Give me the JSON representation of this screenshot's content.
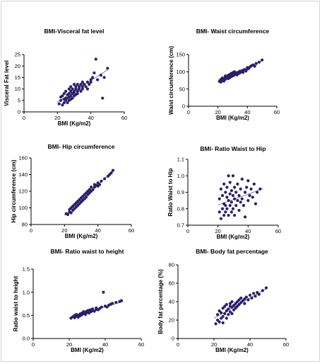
{
  "chart_data": [
    {
      "type": "scatter",
      "title": "BMI-Visceral fat level",
      "xlabel": "BMI (Kg/m2)",
      "ylabel": "Visceral Fat level",
      "xlim": [
        0,
        60
      ],
      "ylim": [
        0,
        25
      ],
      "xticks": [
        0,
        20,
        40,
        60
      ],
      "yticks": [
        0,
        5,
        10,
        15,
        20,
        25
      ],
      "fit": [
        [
          20,
          4.3
        ],
        [
          50,
          18.3
        ]
      ],
      "points": [
        [
          21,
          3.5
        ],
        [
          22,
          5
        ],
        [
          22,
          6.5
        ],
        [
          23,
          3
        ],
        [
          23,
          7
        ],
        [
          24,
          5.5
        ],
        [
          24,
          4
        ],
        [
          24,
          8
        ],
        [
          25,
          6
        ],
        [
          25,
          5
        ],
        [
          25,
          9
        ],
        [
          26,
          6
        ],
        [
          26,
          4
        ],
        [
          26,
          7.5
        ],
        [
          27,
          5
        ],
        [
          27,
          8
        ],
        [
          27,
          10
        ],
        [
          27,
          6.5
        ],
        [
          28,
          7
        ],
        [
          28,
          9
        ],
        [
          28,
          5.5
        ],
        [
          28,
          11
        ],
        [
          29,
          8
        ],
        [
          29,
          6
        ],
        [
          29,
          10
        ],
        [
          30,
          9
        ],
        [
          30,
          7
        ],
        [
          30,
          12
        ],
        [
          30,
          8.5
        ],
        [
          31,
          10
        ],
        [
          31,
          7.5
        ],
        [
          31,
          11
        ],
        [
          32,
          9
        ],
        [
          32,
          12
        ],
        [
          32,
          8
        ],
        [
          33,
          10
        ],
        [
          33,
          11
        ],
        [
          34,
          9
        ],
        [
          34,
          12
        ],
        [
          35,
          11
        ],
        [
          35,
          10
        ],
        [
          35,
          13
        ],
        [
          36,
          12
        ],
        [
          37,
          11
        ],
        [
          38,
          13
        ],
        [
          38,
          10
        ],
        [
          39,
          12
        ],
        [
          40,
          14
        ],
        [
          40,
          13
        ],
        [
          41,
          15
        ],
        [
          42,
          17
        ],
        [
          43,
          23
        ],
        [
          44,
          14
        ],
        [
          46,
          16
        ],
        [
          47,
          6
        ],
        [
          48,
          15
        ],
        [
          50,
          19
        ]
      ]
    },
    {
      "type": "scatter",
      "title": "BMI- Waist circumference",
      "xlabel": "BMI (Kg/m2)",
      "ylabel": "Waist circumference (cm)",
      "xlim": [
        0,
        60
      ],
      "ylim": [
        0,
        150
      ],
      "xticks": [
        0,
        20,
        40,
        60
      ],
      "yticks": [
        0,
        50,
        100,
        150
      ],
      "fit": [
        [
          20,
          76
        ],
        [
          50,
          132
        ]
      ],
      "points": [
        [
          21,
          72
        ],
        [
          22,
          70
        ],
        [
          22,
          78
        ],
        [
          23,
          75
        ],
        [
          23,
          82
        ],
        [
          24,
          80
        ],
        [
          24,
          73
        ],
        [
          25,
          84
        ],
        [
          25,
          78
        ],
        [
          25,
          88
        ],
        [
          26,
          82
        ],
        [
          26,
          86
        ],
        [
          27,
          80
        ],
        [
          27,
          90
        ],
        [
          27,
          85
        ],
        [
          28,
          88
        ],
        [
          28,
          92
        ],
        [
          28,
          83
        ],
        [
          29,
          90
        ],
        [
          29,
          95
        ],
        [
          29,
          86
        ],
        [
          30,
          92
        ],
        [
          30,
          88
        ],
        [
          30,
          97
        ],
        [
          31,
          94
        ],
        [
          31,
          90
        ],
        [
          31,
          100
        ],
        [
          32,
          93
        ],
        [
          32,
          98
        ],
        [
          33,
          96
        ],
        [
          33,
          91
        ],
        [
          34,
          99
        ],
        [
          34,
          95
        ],
        [
          35,
          102
        ],
        [
          35,
          97
        ],
        [
          36,
          100
        ],
        [
          37,
          104
        ],
        [
          37,
          98
        ],
        [
          38,
          106
        ],
        [
          39,
          102
        ],
        [
          40,
          108
        ],
        [
          40,
          112
        ],
        [
          41,
          110
        ],
        [
          42,
          115
        ],
        [
          43,
          118
        ],
        [
          44,
          120
        ],
        [
          45,
          116
        ],
        [
          46,
          124
        ],
        [
          48,
          128
        ],
        [
          50,
          134
        ]
      ]
    },
    {
      "type": "scatter",
      "title": "BMI- Hip circumference",
      "xlabel": "BMI (Kg/m2)",
      "ylabel": "Hip circumference (cm)",
      "xlim": [
        0,
        60
      ],
      "ylim": [
        80,
        160
      ],
      "xticks": [
        0,
        20,
        40,
        60
      ],
      "yticks": [
        80,
        100,
        120,
        140,
        160
      ],
      "fit": [
        [
          20,
          91
        ],
        [
          50,
          146
        ]
      ],
      "points": [
        [
          21,
          93
        ],
        [
          22,
          92
        ],
        [
          23,
          95
        ],
        [
          23,
          98
        ],
        [
          24,
          94
        ],
        [
          24,
          100
        ],
        [
          25,
          97
        ],
        [
          25,
          102
        ],
        [
          26,
          99
        ],
        [
          26,
          104
        ],
        [
          27,
          101
        ],
        [
          27,
          106
        ],
        [
          28,
          103
        ],
        [
          28,
          108
        ],
        [
          29,
          105
        ],
        [
          29,
          110
        ],
        [
          30,
          107
        ],
        [
          30,
          112
        ],
        [
          31,
          109
        ],
        [
          31,
          114
        ],
        [
          32,
          111
        ],
        [
          32,
          116
        ],
        [
          33,
          113
        ],
        [
          33,
          118
        ],
        [
          34,
          116
        ],
        [
          34,
          120
        ],
        [
          35,
          118
        ],
        [
          35,
          122
        ],
        [
          36,
          120
        ],
        [
          36,
          125
        ],
        [
          37,
          122
        ],
        [
          38,
          125
        ],
        [
          38,
          128
        ],
        [
          39,
          127
        ],
        [
          40,
          126
        ],
        [
          40,
          130
        ],
        [
          41,
          128
        ],
        [
          42,
          132
        ],
        [
          44,
          135
        ],
        [
          46,
          138
        ],
        [
          47,
          140
        ],
        [
          48,
          142
        ],
        [
          49,
          145
        ]
      ]
    },
    {
      "type": "scatter",
      "title": "BMI- Ratio Waist to Hip",
      "xlabel": "BMI (Kg/m2)",
      "ylabel": "Ratio Waist to Hip",
      "xlim": [
        0,
        60
      ],
      "ylim": [
        0.7,
        1.1
      ],
      "xticks": [
        0,
        20,
        40,
        60
      ],
      "yticks": [
        0.7,
        0.8,
        0.9,
        1.0,
        1.1
      ],
      "fit": [
        [
          20,
          0.822
        ],
        [
          50,
          0.922
        ]
      ],
      "points": [
        [
          21,
          0.78
        ],
        [
          21,
          0.86
        ],
        [
          22,
          0.74
        ],
        [
          22,
          0.92
        ],
        [
          23,
          0.8
        ],
        [
          23,
          0.88
        ],
        [
          24,
          0.83
        ],
        [
          24,
          0.76
        ],
        [
          24,
          0.95
        ],
        [
          25,
          0.9
        ],
        [
          25,
          0.82
        ],
        [
          25,
          0.78
        ],
        [
          26,
          0.87
        ],
        [
          26,
          0.93
        ],
        [
          26,
          0.8
        ],
        [
          27,
          0.85
        ],
        [
          27,
          1.0
        ],
        [
          27,
          0.76
        ],
        [
          28,
          0.89
        ],
        [
          28,
          0.82
        ],
        [
          28,
          0.96
        ],
        [
          29,
          0.84
        ],
        [
          29,
          0.78
        ],
        [
          29,
          0.91
        ],
        [
          30,
          1.0
        ],
        [
          30,
          0.88
        ],
        [
          30,
          0.8
        ],
        [
          31,
          0.86
        ],
        [
          31,
          0.93
        ],
        [
          31,
          0.76
        ],
        [
          32,
          0.9
        ],
        [
          32,
          0.82
        ],
        [
          33,
          0.85
        ],
        [
          33,
          0.95
        ],
        [
          34,
          0.79
        ],
        [
          34,
          0.88
        ],
        [
          35,
          0.92
        ],
        [
          35,
          0.84
        ],
        [
          36,
          0.86
        ],
        [
          36,
          0.98
        ],
        [
          37,
          0.82
        ],
        [
          38,
          0.9
        ],
        [
          38,
          0.75
        ],
        [
          39,
          0.93
        ],
        [
          40,
          0.85
        ],
        [
          40,
          0.97
        ],
        [
          41,
          0.88
        ],
        [
          42,
          0.92
        ],
        [
          43,
          0.87
        ],
        [
          44,
          0.95
        ],
        [
          45,
          0.83
        ],
        [
          46,
          0.9
        ],
        [
          48,
          0.92
        ]
      ]
    },
    {
      "type": "scatter",
      "title": "BMI- Ratio waist to height",
      "xlabel": "BMI (Kg/m2)",
      "ylabel": "Ratio waist to height",
      "xlim": [
        0,
        60
      ],
      "ylim": [
        0,
        1.5
      ],
      "xticks": [
        0,
        20,
        40,
        60
      ],
      "yticks": [
        0.0,
        0.5,
        1.0,
        1.5
      ],
      "fit": [
        [
          20,
          0.45
        ],
        [
          50,
          0.8
        ]
      ],
      "points": [
        [
          21,
          0.44
        ],
        [
          22,
          0.47
        ],
        [
          23,
          0.45
        ],
        [
          23,
          0.5
        ],
        [
          24,
          0.48
        ],
        [
          24,
          0.52
        ],
        [
          25,
          0.5
        ],
        [
          25,
          0.46
        ],
        [
          26,
          0.53
        ],
        [
          26,
          0.49
        ],
        [
          27,
          0.55
        ],
        [
          27,
          0.51
        ],
        [
          28,
          0.54
        ],
        [
          28,
          0.58
        ],
        [
          29,
          0.52
        ],
        [
          29,
          0.57
        ],
        [
          30,
          0.56
        ],
        [
          30,
          0.6
        ],
        [
          31,
          0.55
        ],
        [
          31,
          0.61
        ],
        [
          32,
          0.58
        ],
        [
          32,
          0.62
        ],
        [
          33,
          0.6
        ],
        [
          33,
          0.64
        ],
        [
          34,
          0.59
        ],
        [
          35,
          0.63
        ],
        [
          35,
          0.66
        ],
        [
          36,
          0.62
        ],
        [
          37,
          0.65
        ],
        [
          38,
          0.68
        ],
        [
          39,
          1.0
        ],
        [
          40,
          0.7
        ],
        [
          41,
          0.68
        ],
        [
          42,
          0.72
        ],
        [
          43,
          0.74
        ],
        [
          44,
          0.76
        ],
        [
          46,
          0.78
        ],
        [
          48,
          0.8
        ],
        [
          49,
          0.82
        ]
      ]
    },
    {
      "type": "scatter",
      "title": "BMI- Body fat percentage",
      "xlabel": "BMI (Kg/m2)",
      "ylabel": "Body fat percentage (%)",
      "xlim": [
        0,
        60
      ],
      "ylim": [
        0,
        80
      ],
      "xticks": [
        0,
        20,
        40,
        60
      ],
      "yticks": [
        0,
        20,
        40,
        60,
        80
      ],
      "fit": [
        [
          20,
          22
        ],
        [
          50,
          55
        ]
      ],
      "points": [
        [
          21,
          16
        ],
        [
          22,
          20
        ],
        [
          22,
          26
        ],
        [
          23,
          18
        ],
        [
          23,
          30
        ],
        [
          24,
          22
        ],
        [
          24,
          28
        ],
        [
          25,
          24
        ],
        [
          25,
          33
        ],
        [
          25,
          17
        ],
        [
          26,
          27
        ],
        [
          26,
          35
        ],
        [
          27,
          30
        ],
        [
          27,
          22
        ],
        [
          27,
          37
        ],
        [
          28,
          32
        ],
        [
          28,
          26
        ],
        [
          29,
          35
        ],
        [
          29,
          29
        ],
        [
          29,
          38
        ],
        [
          30,
          34
        ],
        [
          30,
          27
        ],
        [
          30,
          40
        ],
        [
          31,
          36
        ],
        [
          31,
          31
        ],
        [
          32,
          38
        ],
        [
          32,
          33
        ],
        [
          33,
          40
        ],
        [
          33,
          35
        ],
        [
          34,
          37
        ],
        [
          34,
          42
        ],
        [
          35,
          39
        ],
        [
          35,
          44
        ],
        [
          36,
          41
        ],
        [
          37,
          43
        ],
        [
          37,
          38
        ],
        [
          38,
          45
        ],
        [
          39,
          42
        ],
        [
          40,
          47
        ],
        [
          41,
          44
        ],
        [
          42,
          49
        ],
        [
          43,
          46
        ],
        [
          44,
          50
        ],
        [
          45,
          48
        ],
        [
          47,
          52
        ],
        [
          49,
          55
        ]
      ]
    }
  ]
}
